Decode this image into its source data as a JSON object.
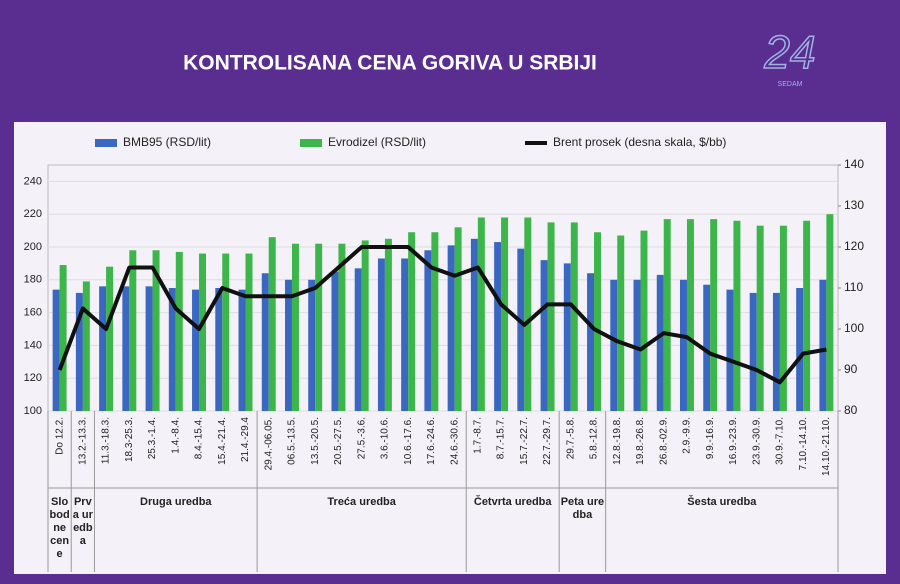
{
  "chart_data": {
    "type": "bar-line",
    "title": "KONTROLISANA CENA GORIVA U SRBIJI",
    "logo": {
      "number": "24",
      "text": "SEDAM"
    },
    "categories": [
      "Do 12.2.",
      "13.2.-13.3.",
      "11.3.-18.3.",
      "18.3-25.3.",
      "25.3.-1.4.",
      "1.4.-8.4.",
      "8.4.-15.4.",
      "15.4.-21.4.",
      "21.4.-29.4",
      "29.4.-06.05.",
      "06.5.-13.5.",
      "13.5.-20.5.",
      "20.5.-27.5.",
      "27.5.-3.6.",
      "3.6.-10.6.",
      "10.6.-17.6.",
      "17.6.-24.6.",
      "24.6.-30.6.",
      "1.7.-8.7.",
      "8.7.-15.7.",
      "15.7.-22.7.",
      "22.7.-29.7.",
      "29.7.-5.8.",
      "5.8.-12.8.",
      "12.8.-19.8.",
      "19.8.-26.8.",
      "26.8.-02.9.",
      "2.9.-9.9.",
      "9.9.-16.9.",
      "16.9.-23.9.",
      "23.9.-30.9.",
      "30.9.-7.10.",
      "7.10.-14.10.",
      "14.10.-21.10."
    ],
    "series": [
      {
        "name": "BMB95 (RSD/lit)",
        "color": "#3a68c0",
        "kind": "bar",
        "values": [
          174,
          172,
          176,
          176,
          176,
          175,
          174,
          175,
          174,
          184,
          180,
          180,
          185,
          187,
          193,
          193,
          198,
          201,
          205,
          203,
          199,
          192,
          190,
          184,
          180,
          180,
          183,
          180,
          177,
          174,
          172,
          172,
          175,
          180
        ]
      },
      {
        "name": "Evrodizel (RSD/lit)",
        "color": "#3cb54a",
        "kind": "bar",
        "values": [
          189,
          179,
          188,
          198,
          198,
          197,
          196,
          196,
          196,
          206,
          202,
          202,
          202,
          204,
          205,
          209,
          209,
          212,
          218,
          218,
          218,
          215,
          215,
          209,
          207,
          210,
          217,
          217,
          217,
          216,
          213,
          213,
          216,
          220
        ]
      },
      {
        "name": "Brent prosek  (desna skala, $/bb)",
        "color": "#111111",
        "kind": "line",
        "axis": "y2",
        "values": [
          90,
          105,
          100,
          115,
          115,
          105,
          100,
          110,
          108,
          108,
          108,
          110,
          115,
          120,
          120,
          120,
          115,
          113,
          115,
          106,
          101,
          106,
          106,
          100,
          97,
          95,
          99,
          98,
          94,
          92,
          90,
          87,
          94,
          95
        ]
      }
    ],
    "groups": [
      {
        "label": "Slobodne cene",
        "start": 0,
        "end": 0
      },
      {
        "label": "Prva uredba",
        "start": 1,
        "end": 1
      },
      {
        "label": "Druga uredba",
        "start": 2,
        "end": 8
      },
      {
        "label": "Treća uredba",
        "start": 9,
        "end": 17
      },
      {
        "label": "Četvrta uredba",
        "start": 18,
        "end": 21
      },
      {
        "label": "Peta uredba",
        "start": 22,
        "end": 23
      },
      {
        "label": "Šesta uredba",
        "start": 24,
        "end": 33
      }
    ],
    "ylim": [
      100,
      250
    ],
    "yticks": [
      100,
      120,
      140,
      160,
      180,
      200,
      220,
      240
    ],
    "y2lim": [
      80,
      140
    ],
    "y2ticks": [
      80,
      90,
      100,
      110,
      120,
      130,
      140
    ],
    "grid": true
  }
}
